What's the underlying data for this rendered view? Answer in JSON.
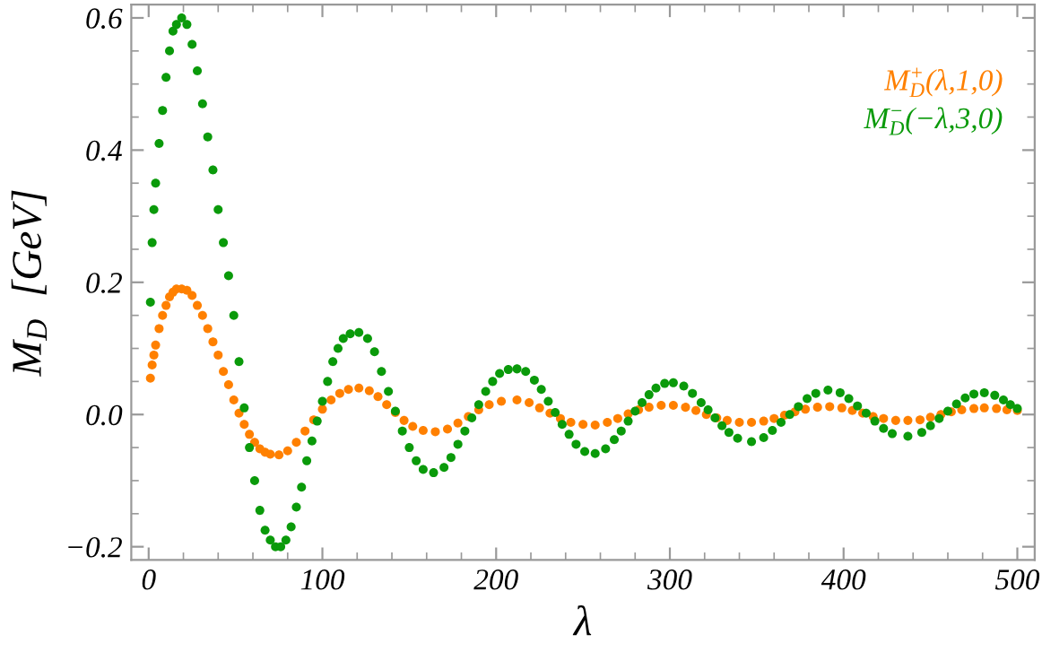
{
  "chart_data": {
    "type": "scatter",
    "xlabel": "λ",
    "ylabel": "M$_{D}$  [GeV]",
    "marker": "circle",
    "xlim": [
      -10,
      510
    ],
    "ylim": [
      -0.22,
      0.62
    ],
    "xticks": [
      0,
      100,
      200,
      300,
      400,
      500
    ],
    "yticks": [
      {
        "value": -0.2,
        "label": "−0.2"
      },
      {
        "value": 0,
        "label": "0.0"
      },
      {
        "value": 0.2,
        "label": "0.2"
      },
      {
        "value": 0.4,
        "label": "0.4"
      },
      {
        "value": 0.6,
        "label": "0.6"
      }
    ],
    "series": [
      {
        "name": "M$^{+}$$_{D}$(λ,1,0)",
        "color": "#ff8000",
        "x": [
          1,
          2,
          3,
          4,
          6,
          8,
          10,
          12,
          14,
          16,
          19,
          22,
          25,
          28,
          31,
          34,
          37,
          40,
          43,
          46,
          49,
          52,
          55,
          58,
          61,
          64,
          67,
          70,
          75,
          80,
          85,
          90,
          95,
          100,
          105,
          110,
          115,
          121,
          127,
          132,
          137,
          142,
          147,
          152,
          158,
          165,
          172,
          178,
          184,
          190,
          196,
          203,
          212,
          219,
          225,
          231,
          237,
          243,
          250,
          257,
          264,
          270,
          276,
          282,
          288,
          295,
          302,
          309,
          315,
          321,
          327,
          333,
          340,
          347,
          354,
          360,
          366,
          372,
          378,
          385,
          392,
          399,
          405,
          411,
          417,
          423,
          430,
          437,
          444,
          450,
          456,
          462,
          468,
          475,
          481,
          488,
          494,
          500
        ],
        "values": [
          0.055,
          0.075,
          0.09,
          0.105,
          0.13,
          0.15,
          0.165,
          0.178,
          0.185,
          0.19,
          0.19,
          0.188,
          0.18,
          0.165,
          0.15,
          0.13,
          0.11,
          0.09,
          0.065,
          0.045,
          0.022,
          0.002,
          -0.015,
          -0.03,
          -0.042,
          -0.052,
          -0.057,
          -0.06,
          -0.061,
          -0.055,
          -0.042,
          -0.025,
          -0.008,
          0.008,
          0.022,
          0.032,
          0.038,
          0.04,
          0.036,
          0.027,
          0.015,
          0.003,
          -0.009,
          -0.018,
          -0.024,
          -0.026,
          -0.022,
          -0.013,
          -0.003,
          0.007,
          0.015,
          0.02,
          0.022,
          0.018,
          0.01,
          0.002,
          -0.006,
          -0.012,
          -0.015,
          -0.016,
          -0.012,
          -0.006,
          0.001,
          0.007,
          0.011,
          0.014,
          0.014,
          0.011,
          0.006,
          0.0,
          -0.005,
          -0.009,
          -0.012,
          -0.012,
          -0.01,
          -0.006,
          -0.001,
          0.004,
          0.008,
          0.011,
          0.012,
          0.01,
          0.006,
          0.002,
          -0.003,
          -0.006,
          -0.009,
          -0.009,
          -0.008,
          -0.004,
          0.0,
          0.004,
          0.007,
          0.009,
          0.01,
          0.009,
          0.007,
          0.006
        ]
      },
      {
        "name": "M$^{−}$$_{D}$(−λ,3,0)",
        "color": "#0a9a0a",
        "x": [
          1,
          2,
          3,
          4,
          6,
          8,
          10,
          12,
          14,
          16,
          19,
          22,
          25,
          28,
          31,
          34,
          37,
          40,
          43,
          46,
          49,
          52,
          55,
          58,
          61,
          64,
          67,
          70,
          73,
          76,
          79,
          82,
          85,
          88,
          91,
          94,
          97,
          100,
          103,
          106,
          109,
          112,
          116,
          121,
          126,
          130,
          134,
          138,
          142,
          146,
          150,
          154,
          158,
          164,
          170,
          174,
          178,
          182,
          186,
          190,
          194,
          198,
          202,
          207,
          212,
          217,
          222,
          226,
          230,
          234,
          238,
          242,
          246,
          251,
          257,
          263,
          268,
          272,
          276,
          280,
          284,
          288,
          292,
          297,
          302,
          308,
          313,
          318,
          322,
          326,
          330,
          334,
          339,
          347,
          354,
          359,
          364,
          369,
          374,
          379,
          384,
          391,
          398,
          403,
          408,
          413,
          418,
          423,
          428,
          437,
          445,
          450,
          455,
          460,
          465,
          470,
          475,
          481,
          487,
          492,
          496,
          500
        ],
        "values": [
          0.17,
          0.26,
          0.31,
          0.35,
          0.41,
          0.46,
          0.51,
          0.55,
          0.58,
          0.59,
          0.6,
          0.59,
          0.56,
          0.52,
          0.47,
          0.42,
          0.37,
          0.31,
          0.26,
          0.21,
          0.15,
          0.08,
          0.01,
          -0.05,
          -0.1,
          -0.145,
          -0.175,
          -0.19,
          -0.2,
          -0.2,
          -0.19,
          -0.17,
          -0.14,
          -0.11,
          -0.07,
          -0.04,
          -0.01,
          0.02,
          0.05,
          0.08,
          0.1,
          0.115,
          0.122,
          0.124,
          0.115,
          0.095,
          0.065,
          0.035,
          0.005,
          -0.025,
          -0.05,
          -0.07,
          -0.083,
          -0.088,
          -0.08,
          -0.065,
          -0.045,
          -0.025,
          -0.005,
          0.015,
          0.035,
          0.05,
          0.062,
          0.068,
          0.069,
          0.065,
          0.052,
          0.038,
          0.02,
          0.003,
          -0.015,
          -0.03,
          -0.045,
          -0.056,
          -0.059,
          -0.052,
          -0.038,
          -0.025,
          -0.01,
          0.005,
          0.018,
          0.03,
          0.04,
          0.047,
          0.048,
          0.043,
          0.032,
          0.018,
          0.007,
          -0.005,
          -0.017,
          -0.027,
          -0.036,
          -0.041,
          -0.035,
          -0.024,
          -0.012,
          0.0,
          0.012,
          0.024,
          0.032,
          0.037,
          0.033,
          0.024,
          0.013,
          0.002,
          -0.01,
          -0.021,
          -0.029,
          -0.033,
          -0.027,
          -0.017,
          -0.006,
          0.005,
          0.016,
          0.025,
          0.031,
          0.033,
          0.029,
          0.022,
          0.015,
          0.009
        ]
      }
    ]
  }
}
